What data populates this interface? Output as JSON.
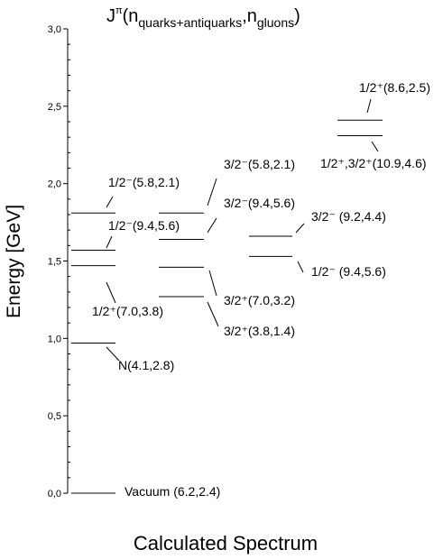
{
  "chart_data": {
    "type": "levels",
    "title": [
      "J",
      "π",
      "(n",
      "quarks+antiquarks",
      ",n",
      "gluons",
      ")"
    ],
    "y_label": "Energy [GeV]",
    "x_label": "Calculated Spectrum",
    "ylim": [
      0,
      3
    ],
    "yticks": [
      {
        "value": 0,
        "label": "0,0"
      },
      {
        "value": 0.5,
        "label": "0,5"
      },
      {
        "value": 1,
        "label": "1,0"
      },
      {
        "value": 1.5,
        "label": "1,5"
      },
      {
        "value": 2,
        "label": "2,0"
      },
      {
        "value": 2.5,
        "label": "2,5"
      },
      {
        "value": 3,
        "label": "3,0"
      }
    ],
    "yminorticks": [
      0.1,
      0.2,
      0.3,
      0.4,
      0.6,
      0.7,
      0.8,
      0.9,
      1.1,
      1.2,
      1.3,
      1.4,
      1.6,
      1.7,
      1.8,
      1.9,
      2.1,
      2.2,
      2.3,
      2.4,
      2.6,
      2.7,
      2.8,
      2.9
    ],
    "levels": [
      [
        {
          "energy": 1.81,
          "label": "1/2⁻(5.8,2.1)"
        },
        {
          "energy": 1.57,
          "label": "1/2⁻(9.4,5.6)"
        },
        {
          "energy": 1.47,
          "label": "1/2⁺(7.0,3.8)"
        },
        {
          "energy": 0.97,
          "label": "N(4.1,2.8)"
        },
        {
          "energy": 0,
          "label": "Vacuum (6.2,2.4)"
        }
      ],
      [
        {
          "energy": 1.81,
          "label": "3/2⁻(5.8,2.1)"
        },
        {
          "energy": 1.64,
          "label": "3/2⁻(9.4,5.6)"
        },
        {
          "energy": 1.46,
          "label": "3/2⁺(7.0,3.2)"
        },
        {
          "energy": 1.27,
          "label": "3/2⁺(3.8,1.4)"
        }
      ],
      [
        {
          "energy": 1.66,
          "label": "3/2⁻ (9.2,4.4)"
        },
        {
          "energy": 1.53,
          "label": "1/2⁻ (9.4,5.6)"
        }
      ],
      [
        {
          "energy": 2.41,
          "label": "1/2⁺(8.6,2.5)"
        },
        {
          "energy": 2.31,
          "label": "1/2⁺,3/2⁺(10.9,4.6)"
        }
      ]
    ],
    "color": "#000000"
  }
}
